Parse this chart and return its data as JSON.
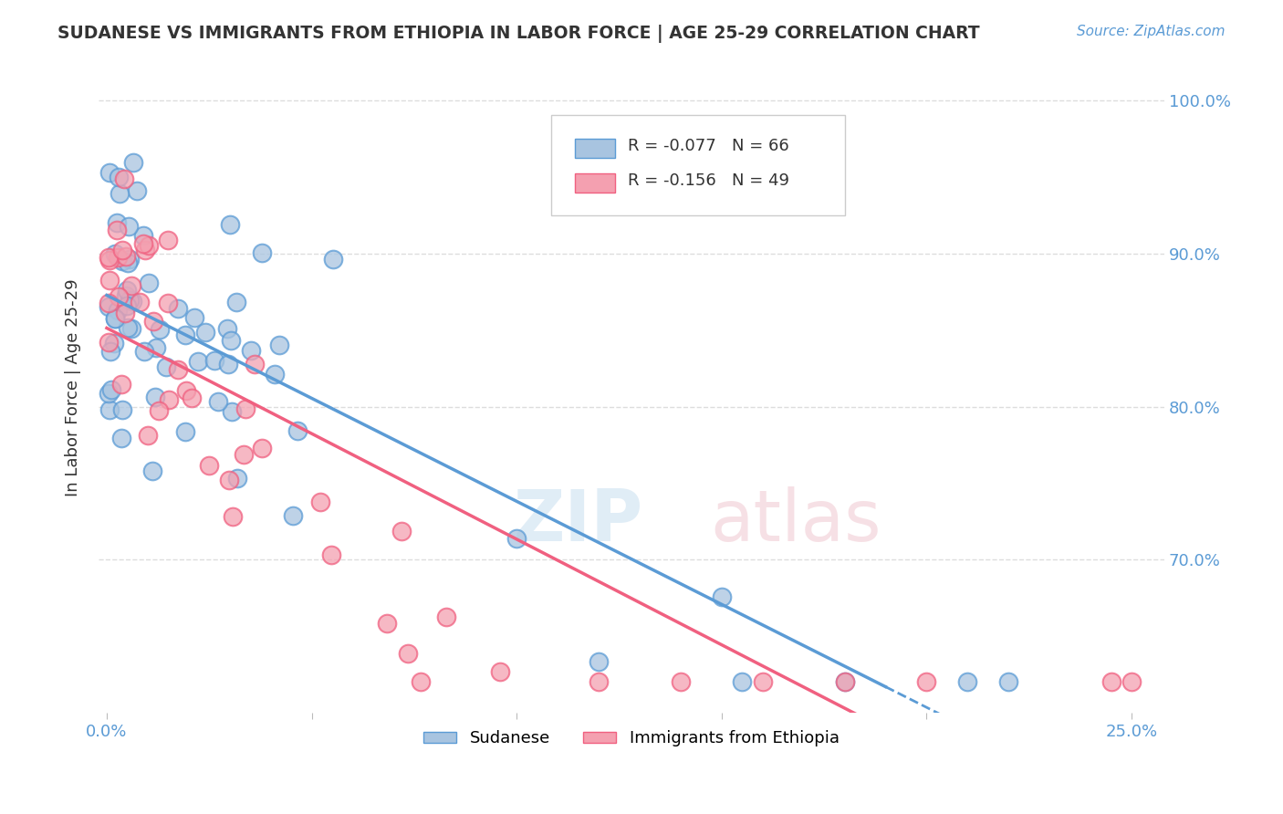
{
  "title": "SUDANESE VS IMMIGRANTS FROM ETHIOPIA IN LABOR FORCE | AGE 25-29 CORRELATION CHART",
  "source": "Source: ZipAtlas.com",
  "ylabel": "In Labor Force | Age 25-29",
  "r_sudanese": -0.077,
  "n_sudanese": 66,
  "r_ethiopia": -0.156,
  "n_ethiopia": 49,
  "sudanese_color": "#a8c4e0",
  "ethiopia_color": "#f4a0b0",
  "trend_sudanese_color": "#5b9bd5",
  "trend_ethiopia_color": "#f06080",
  "ytick_positions": [
    0.7,
    0.8,
    0.9,
    1.0
  ],
  "ytick_labels": [
    "70.0%",
    "80.0%",
    "90.0%",
    "100.0%"
  ],
  "xtick_positions": [
    0.0,
    0.05,
    0.1,
    0.15,
    0.2,
    0.25
  ],
  "xtick_labels": [
    "0.0%",
    "",
    "",
    "",
    "",
    "25.0%"
  ],
  "xlim": [
    -0.002,
    0.258
  ],
  "ylim": [
    0.6,
    1.025
  ],
  "legend_sudanese": "Sudanese",
  "legend_ethiopia": "Immigrants from Ethiopia"
}
